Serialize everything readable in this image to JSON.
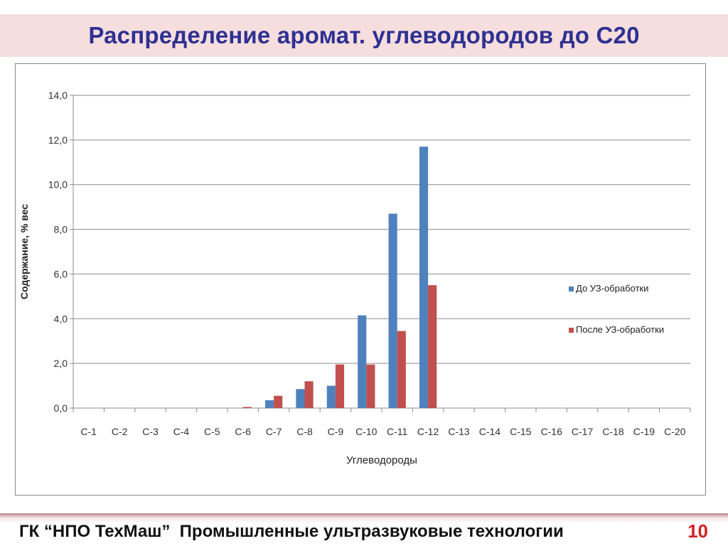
{
  "slide": {
    "title": "Распределение аромат. углеводородов до С20",
    "footer": "ГК “НПО ТехМаш”  Промышленные ультразвуковые технологии",
    "page_number": "10"
  },
  "colors": {
    "series_before": "#4f81bd",
    "series_after": "#c0504d",
    "title": "#2e3192",
    "title_bg": "#f6dede",
    "page_number": "#d02020"
  },
  "chart_data": {
    "type": "bar",
    "title": "",
    "xlabel": "Углеводороды",
    "ylabel": "Содержание, % вес",
    "ylim": [
      0,
      14
    ],
    "yticks": [
      0,
      2,
      4,
      6,
      8,
      10,
      12,
      14
    ],
    "ytick_labels": [
      "0,0",
      "2,0",
      "4,0",
      "6,0",
      "8,0",
      "10,0",
      "12,0",
      "14,0"
    ],
    "grid": true,
    "legend_position": "right",
    "categories": [
      "С-1",
      "С-2",
      "С-3",
      "С-4",
      "С-5",
      "С-6",
      "С-7",
      "С-8",
      "С-9",
      "С-10",
      "С-11",
      "С-12",
      "С-13",
      "С-14",
      "С-15",
      "С-16",
      "С-17",
      "С-18",
      "С-19",
      "С-20"
    ],
    "series": [
      {
        "name": "До УЗ-обработки",
        "color": "#4f81bd",
        "values": [
          0,
          0,
          0,
          0,
          0,
          0,
          0.35,
          0.85,
          1.0,
          4.15,
          8.7,
          11.7,
          0,
          0,
          0,
          0,
          0,
          0,
          0,
          0
        ]
      },
      {
        "name": "После УЗ-обработки",
        "color": "#c0504d",
        "values": [
          0,
          0,
          0,
          0,
          0,
          0.05,
          0.55,
          1.2,
          1.95,
          1.95,
          3.45,
          5.5,
          0,
          0,
          0,
          0,
          0,
          0,
          0,
          0
        ]
      }
    ]
  }
}
